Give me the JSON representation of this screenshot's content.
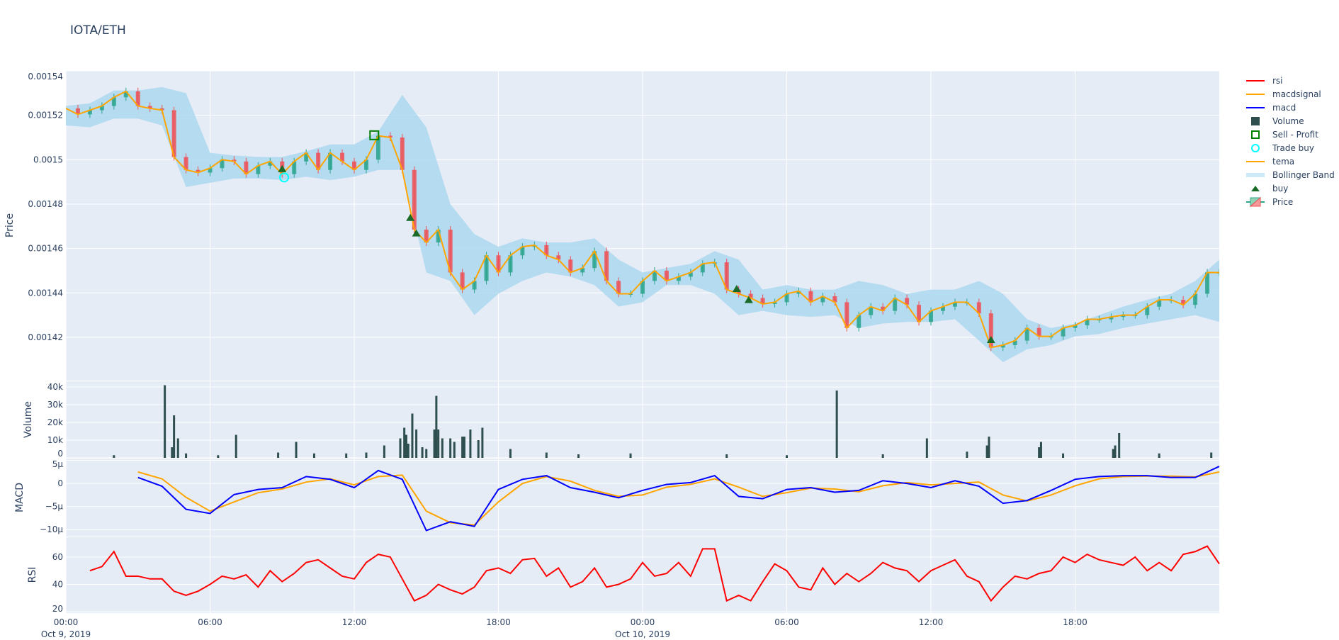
{
  "title": "IOTA/ETH",
  "colors": {
    "plot_bg": "#e5ecf6",
    "increasing": "#2ca58d",
    "decreasing": "#ef4f55",
    "tema": "#ffa500",
    "bollinger": "#add8f0",
    "volume": "#2f4f4f",
    "macd": "#0000ff",
    "macdsignal": "#ffa500",
    "rsi": "#ff0000",
    "buy": "#1a6b2a",
    "sell_profit": "#008000",
    "trade_buy": "#00ffff"
  },
  "legend": {
    "position": "right",
    "items": [
      {
        "label": "rsi",
        "icon": "line-red"
      },
      {
        "label": "macdsignal",
        "icon": "line-orange"
      },
      {
        "label": "macd",
        "icon": "line-blue"
      },
      {
        "label": "Volume",
        "icon": "square-dark"
      },
      {
        "label": "Sell - Profit",
        "icon": "square-open-green"
      },
      {
        "label": "Trade buy",
        "icon": "circle-open-cyan"
      },
      {
        "label": "tema",
        "icon": "line-orange"
      },
      {
        "label": "Bollinger Band",
        "icon": "band-lightblue"
      },
      {
        "label": "buy",
        "icon": "triangle-up-green"
      },
      {
        "label": "Price",
        "icon": "candlestick"
      }
    ]
  },
  "chart_data": [
    {
      "type": "candlestick",
      "panel": "price",
      "ylabel": "Price",
      "ylim": [
        0.0014005,
        0.00154
      ],
      "yticks": [
        "0.00154",
        "0.00152",
        "0.0015",
        "0.00148",
        "0.00146",
        "0.00144",
        "0.00142"
      ],
      "ytick_values": [
        0.00154,
        0.00152,
        0.0015,
        0.00148,
        0.00146,
        0.00144,
        0.00142
      ],
      "grid": true,
      "series_start": "2019-10-09 00:00",
      "interval_minutes": 30,
      "close": [
        0.0015231,
        0.0015204,
        0.0015223,
        0.0015242,
        0.0015281,
        0.0015308,
        0.0015242,
        0.0015231,
        0.0015223,
        0.0015012,
        0.0014954,
        0.0014942,
        0.0014962,
        0.0015,
        0.0014992,
        0.0014935,
        0.0014973,
        0.0014992,
        0.0014935,
        0.0014992,
        0.0015031,
        0.0014954,
        0.0015031,
        0.0014992,
        0.0014954,
        0.0015,
        0.0015108,
        0.00151,
        0.0014954,
        0.0014685,
        0.0014627,
        0.0014685,
        0.0014492,
        0.0014415,
        0.0014454,
        0.0014569,
        0.0014492,
        0.0014569,
        0.0014608,
        0.0014615,
        0.0014569,
        0.001455,
        0.0014492,
        0.0014512,
        0.0014588,
        0.0014454,
        0.0014396,
        0.0014396,
        0.0014454,
        0.00145,
        0.0014454,
        0.0014473,
        0.0014492,
        0.0014531,
        0.0014538,
        0.0014415,
        0.0014396,
        0.0014377,
        0.001435,
        0.0014358,
        0.0014396,
        0.0014408,
        0.0014358,
        0.0014385,
        0.0014358,
        0.0014242,
        0.00143,
        0.0014338,
        0.0014319,
        0.0014377,
        0.0014346,
        0.0014269,
        0.0014319,
        0.0014338,
        0.0014358,
        0.0014358,
        0.0014308,
        0.0014154,
        0.0014165,
        0.0014185,
        0.0014242,
        0.0014204,
        0.0014204,
        0.0014242,
        0.0014254,
        0.0014281,
        0.0014281,
        0.0014292,
        0.00143,
        0.00143,
        0.0014338,
        0.0014369,
        0.0014369,
        0.0014346,
        0.0014396,
        0.0014492,
        0.0014492
      ],
      "tema_name": "tema",
      "bollinger": {
        "name": "Bollinger Band",
        "start": "2019-10-09 00:00",
        "interval_minutes": 60,
        "upper": [
          0.0015242,
          0.0015254,
          0.0015312,
          0.0015312,
          0.0015327,
          0.00153,
          0.0015031,
          0.0015019,
          0.0015012,
          0.0015012,
          0.0015038,
          0.0015069,
          0.0015069,
          0.0015127,
          0.0015292,
          0.0015146,
          0.00148,
          0.0014665,
          0.0014608,
          0.0014646,
          0.0014627,
          0.0014627,
          0.0014646,
          0.001455,
          0.0014492,
          0.0014512,
          0.0014531,
          0.0014588,
          0.001455,
          0.0014415,
          0.0014435,
          0.0014415,
          0.0014415,
          0.0014454,
          0.0014435,
          0.0014396,
          0.0014415,
          0.0014415,
          0.0014454,
          0.0014396,
          0.0014281,
          0.0014242,
          0.0014262,
          0.00143,
          0.0014338,
          0.0014369,
          0.0014396,
          0.0014454,
          0.001455
        ],
        "lower": [
          0.0015154,
          0.0015146,
          0.0015185,
          0.0015185,
          0.0015154,
          0.0014877,
          0.0014896,
          0.0014915,
          0.0014915,
          0.0014908,
          0.0014923,
          0.0014908,
          0.0014923,
          0.0014954,
          0.0014954,
          0.0014492,
          0.0014454,
          0.00143,
          0.0014396,
          0.0014454,
          0.0014492,
          0.0014473,
          0.0014435,
          0.0014338,
          0.0014358,
          0.0014435,
          0.0014435,
          0.0014396,
          0.00143,
          0.0014319,
          0.00143,
          0.0014292,
          0.00143,
          0.0014242,
          0.0014262,
          0.0014269,
          0.0014269,
          0.0014281,
          0.0014185,
          0.0014088,
          0.0014146,
          0.0014165,
          0.0014204,
          0.0014215,
          0.0014242,
          0.0014262,
          0.0014281,
          0.00143,
          0.0014269
        ]
      },
      "buy_markers": [
        {
          "time": "2019-10-09 09:00",
          "price": 0.001496
        },
        {
          "time": "2019-10-09 14:20",
          "price": 0.001474
        },
        {
          "time": "2019-10-09 14:35",
          "price": 0.001467
        },
        {
          "time": "2019-10-10 03:55",
          "price": 0.001442
        },
        {
          "time": "2019-10-10 04:25",
          "price": 0.001437
        },
        {
          "time": "2019-10-10 14:30",
          "price": 0.001419
        }
      ],
      "trade_buy": [
        {
          "time": "2019-10-09 09:05",
          "price": 0.001492
        }
      ],
      "sell_profit": [
        {
          "time": "2019-10-09 12:50",
          "price": 0.001511
        }
      ]
    },
    {
      "type": "bar",
      "panel": "volume",
      "name": "Volume",
      "ylabel": "Volume",
      "ylim": [
        0,
        43200
      ],
      "yticks": [
        "40k",
        "30k",
        "20k",
        "10k",
        "0"
      ],
      "ytick_values": [
        40000,
        30000,
        20000,
        10000,
        0
      ],
      "bars": [
        [
          "2019-10-09 02:00",
          1500
        ],
        [
          "2019-10-09 04:07",
          41000
        ],
        [
          "2019-10-09 04:25",
          6000
        ],
        [
          "2019-10-09 04:30",
          24000
        ],
        [
          "2019-10-09 04:40",
          11000
        ],
        [
          "2019-10-09 05:00",
          2500
        ],
        [
          "2019-10-09 06:20",
          1500
        ],
        [
          "2019-10-09 07:05",
          13000
        ],
        [
          "2019-10-09 08:50",
          3000
        ],
        [
          "2019-10-09 09:35",
          9000
        ],
        [
          "2019-10-09 10:20",
          2500
        ],
        [
          "2019-10-09 11:40",
          2500
        ],
        [
          "2019-10-09 12:30",
          3000
        ],
        [
          "2019-10-09 13:15",
          7000
        ],
        [
          "2019-10-09 13:55",
          11000
        ],
        [
          "2019-10-09 14:05",
          17000
        ],
        [
          "2019-10-09 14:10",
          13000
        ],
        [
          "2019-10-09 14:15",
          8000
        ],
        [
          "2019-10-09 14:25",
          25000
        ],
        [
          "2019-10-09 14:35",
          16000
        ],
        [
          "2019-10-09 14:50",
          6000
        ],
        [
          "2019-10-09 15:00",
          5000
        ],
        [
          "2019-10-09 15:20",
          16000
        ],
        [
          "2019-10-09 15:25",
          35000
        ],
        [
          "2019-10-09 15:30",
          16000
        ],
        [
          "2019-10-09 15:40",
          11000
        ],
        [
          "2019-10-09 16:00",
          11000
        ],
        [
          "2019-10-09 16:10",
          9000
        ],
        [
          "2019-10-09 16:30",
          12000
        ],
        [
          "2019-10-09 16:35",
          12000
        ],
        [
          "2019-10-09 16:50",
          16000
        ],
        [
          "2019-10-09 17:10",
          10000
        ],
        [
          "2019-10-09 17:20",
          17000
        ],
        [
          "2019-10-09 18:30",
          5000
        ],
        [
          "2019-10-09 20:00",
          3000
        ],
        [
          "2019-10-09 21:20",
          2000
        ],
        [
          "2019-10-09 23:30",
          2500
        ],
        [
          "2019-10-10 03:30",
          2000
        ],
        [
          "2019-10-10 06:00",
          1500
        ],
        [
          "2019-10-10 08:05",
          38000
        ],
        [
          "2019-10-10 10:00",
          2000
        ],
        [
          "2019-10-10 11:50",
          11000
        ],
        [
          "2019-10-10 13:30",
          3500
        ],
        [
          "2019-10-10 14:20",
          7000
        ],
        [
          "2019-10-10 14:25",
          12000
        ],
        [
          "2019-10-10 16:30",
          6000
        ],
        [
          "2019-10-10 16:35",
          9000
        ],
        [
          "2019-10-10 17:30",
          2500
        ],
        [
          "2019-10-10 19:35",
          5000
        ],
        [
          "2019-10-10 19:40",
          7000
        ],
        [
          "2019-10-10 19:50",
          14000
        ],
        [
          "2019-10-10 21:30",
          2500
        ],
        [
          "2019-10-10 23:40",
          3000
        ]
      ]
    },
    {
      "type": "line",
      "panel": "macd",
      "ylabel": "MACD",
      "ylim": [
        -1.15e-05,
        5.4e-06
      ],
      "yticks": [
        "5μ",
        "0",
        "−5μ",
        "−10μ"
      ],
      "ytick_values": [
        5e-06,
        0,
        -5e-06,
        -1e-05
      ],
      "series_start": "2019-10-09 03:00",
      "interval_minutes": 60,
      "series": [
        {
          "name": "macd",
          "values": [
            1.3e-06,
            -6e-07,
            -5.6e-06,
            -6.5e-06,
            -2.4e-06,
            -1.3e-06,
            -9e-07,
            1.5e-06,
            9e-07,
            -9e-07,
            2.8e-06,
            9e-07,
            -1.02e-05,
            -8.3e-06,
            -9.3e-06,
            -1.3e-06,
            9e-07,
            1.7e-06,
            -9e-07,
            -1.9e-06,
            -3.1e-06,
            -1.5e-06,
            -2e-07,
            2e-07,
            1.7e-06,
            -2.8e-06,
            -3.3e-06,
            -1.3e-06,
            -9e-07,
            -1.9e-06,
            -1.5e-06,
            6e-07,
            0,
            -9e-07,
            6e-07,
            -6e-07,
            -4.3e-06,
            -3.7e-06,
            -1.5e-06,
            9e-07,
            1.5e-06,
            1.7e-06,
            1.7e-06,
            1.3e-06,
            1.3e-06,
            3.7e-06
          ]
        },
        {
          "name": "macdsignal",
          "values": [
            2.5e-06,
            1e-06,
            -3e-06,
            -6e-06,
            -4e-06,
            -2e-06,
            -1.2e-06,
            3e-07,
            1e-06,
            -3e-07,
            1.5e-06,
            1.8e-06,
            -6e-06,
            -8.5e-06,
            -9e-06,
            -4e-06,
            0,
            1.5e-06,
            5e-07,
            -1.5e-06,
            -2.8e-06,
            -2.5e-06,
            -8e-07,
            -2e-07,
            1e-06,
            -8e-07,
            -2.8e-06,
            -2e-06,
            -1e-06,
            -1.2e-06,
            -1.8e-06,
            -5e-07,
            2e-07,
            -3e-07,
            0,
            3e-07,
            -2.5e-06,
            -3.8e-06,
            -2.5e-06,
            -5e-07,
            1e-06,
            1.5e-06,
            1.6e-06,
            1.6e-06,
            1.4e-06,
            2.5e-06
          ]
        }
      ]
    },
    {
      "type": "line",
      "panel": "rsi",
      "ylabel": "RSI",
      "ylim": [
        19,
        74.5
      ],
      "yticks": [
        "60",
        "40",
        "20"
      ],
      "ytick_values": [
        60,
        40,
        20
      ],
      "series_start": "2019-10-09 01:00",
      "interval_minutes": 30,
      "series": [
        {
          "name": "rsi",
          "values": [
            50,
            53,
            64,
            46,
            46,
            44,
            44,
            35,
            32,
            35,
            40,
            46,
            44,
            47,
            38,
            50,
            42,
            48,
            56,
            58,
            52,
            46,
            44,
            56,
            62,
            60,
            44,
            28,
            32,
            40,
            36,
            33,
            38,
            50,
            52,
            48,
            58,
            59,
            46,
            52,
            38,
            42,
            52,
            38,
            40,
            44,
            56,
            46,
            48,
            56,
            46,
            66,
            66,
            28,
            32,
            28,
            42,
            55,
            50,
            38,
            36,
            52,
            40,
            48,
            42,
            48,
            56,
            52,
            50,
            42,
            50,
            54,
            58,
            46,
            42,
            28,
            38,
            46,
            44,
            48,
            50,
            60,
            56,
            62,
            58,
            56,
            54,
            60,
            50,
            56,
            50,
            62,
            64,
            68,
            55
          ]
        }
      ]
    }
  ],
  "xaxis": {
    "range": [
      "2019-10-09 00:00",
      "2019-10-11 00:00"
    ],
    "ticks": [
      {
        "time": "2019-10-09 00:00",
        "label": "00:00",
        "sub": "Oct 9, 2019"
      },
      {
        "time": "2019-10-09 06:00",
        "label": "06:00",
        "sub": ""
      },
      {
        "time": "2019-10-09 12:00",
        "label": "12:00",
        "sub": ""
      },
      {
        "time": "2019-10-09 18:00",
        "label": "18:00",
        "sub": ""
      },
      {
        "time": "2019-10-10 00:00",
        "label": "00:00",
        "sub": "Oct 10, 2019"
      },
      {
        "time": "2019-10-10 06:00",
        "label": "06:00",
        "sub": ""
      },
      {
        "time": "2019-10-10 12:00",
        "label": "12:00",
        "sub": ""
      },
      {
        "time": "2019-10-10 18:00",
        "label": "18:00",
        "sub": ""
      }
    ]
  }
}
